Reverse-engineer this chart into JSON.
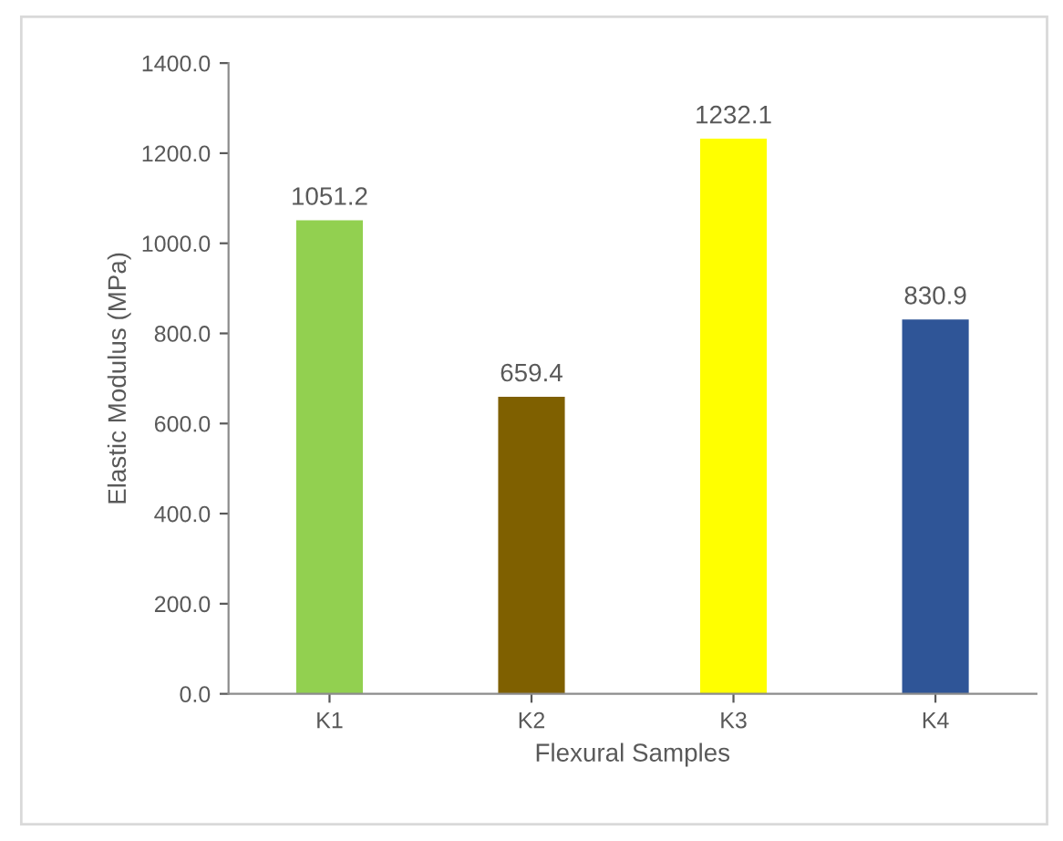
{
  "chart_data": {
    "type": "bar",
    "xlabel": "Flexural Samples",
    "ylabel": "Elastic Modulus (MPa)",
    "categories": [
      "K1",
      "K2",
      "K3",
      "K4"
    ],
    "values": [
      1051.2,
      659.4,
      1232.1,
      830.9
    ],
    "colors": [
      "#92d050",
      "#7f6000",
      "#ffff00",
      "#2f5597"
    ],
    "ylim": [
      0,
      1400
    ],
    "yticks": [
      {
        "value": 0,
        "label": "0.0"
      },
      {
        "value": 200,
        "label": "200.0"
      },
      {
        "value": 400,
        "label": "400.0"
      },
      {
        "value": 600,
        "label": "600.0"
      },
      {
        "value": 800,
        "label": "800.0"
      },
      {
        "value": 1000,
        "label": "1000.0"
      },
      {
        "value": 1200,
        "label": "1200.0"
      },
      {
        "value": 1400,
        "label": "1400.0"
      }
    ],
    "data_labels": true,
    "grid": false,
    "legend": false
  }
}
